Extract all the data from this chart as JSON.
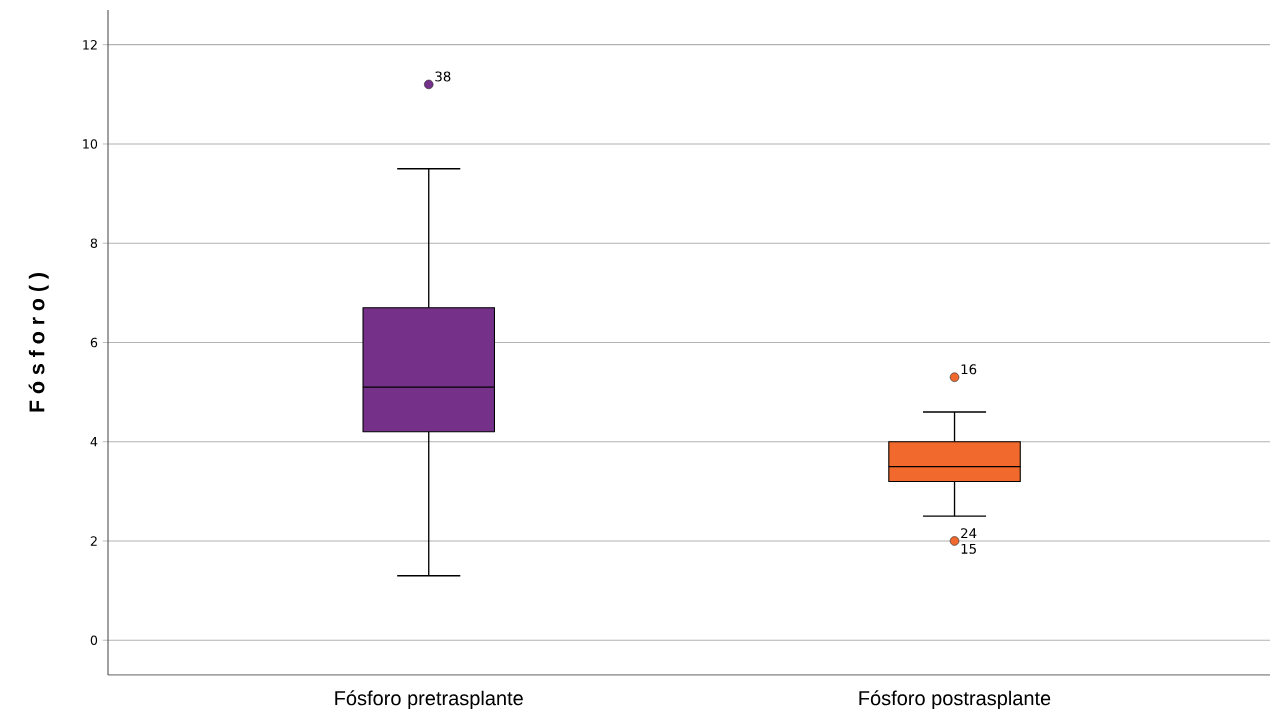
{
  "chart_data": {
    "type": "box",
    "ylabel": "F ó s f o r o  ( )",
    "categories": [
      "Fósforo pretrasplante",
      "Fósforo postrasplante"
    ],
    "colors": [
      "#753189",
      "#f1692c"
    ],
    "boxes": [
      {
        "low": 1.3,
        "q1": 4.2,
        "median": 5.1,
        "q3": 6.7,
        "high": 9.5,
        "outliers": [
          11.2
        ]
      },
      {
        "low": 2.5,
        "q1": 3.2,
        "median": 3.5,
        "q3": 4.0,
        "high": 4.6,
        "outliers": [
          5.3,
          2.0
        ]
      }
    ],
    "ylim": [
      -0.7,
      12.7
    ],
    "yticks": [
      0,
      2,
      4,
      6,
      8,
      10,
      12
    ],
    "grid": "y",
    "marker": "circle",
    "annotations": [
      "38",
      "16",
      "24",
      "15"
    ]
  }
}
